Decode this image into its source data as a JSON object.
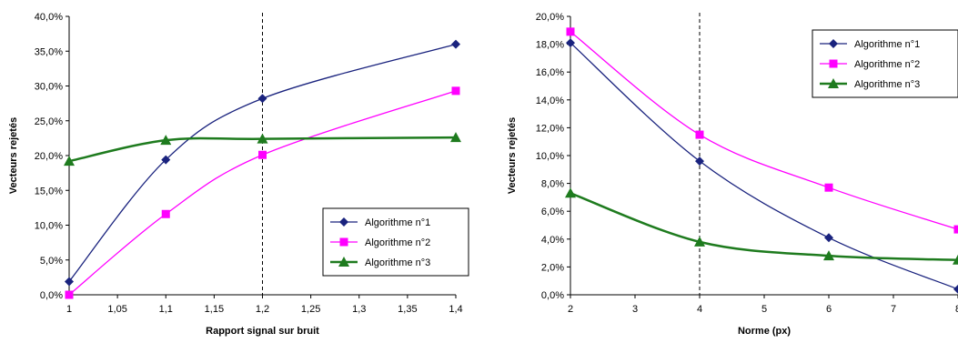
{
  "chart_data": [
    {
      "type": "line",
      "xlabel": "Rapport signal sur bruit",
      "ylabel": "Vecteurs rejetés",
      "x": [
        1,
        1.1,
        1.2,
        1.4
      ],
      "xlim": [
        1,
        1.4
      ],
      "xticks": [
        "1",
        "1,05",
        "1,1",
        "1,15",
        "1,2",
        "1,25",
        "1,3",
        "1,35",
        "1,4"
      ],
      "ylim": [
        0,
        40
      ],
      "yticks": [
        "0,0%",
        "5,0%",
        "10,0%",
        "15,0%",
        "20,0%",
        "25,0%",
        "30,0%",
        "35,0%",
        "40,0%"
      ],
      "reference_line_x": 1.2,
      "legend_position": "lower-right",
      "series": [
        {
          "name": "Algorithme n°1",
          "values": [
            1.9,
            19.4,
            28.2,
            36.0
          ],
          "color": "#1a237e",
          "marker": "diamond"
        },
        {
          "name": "Algorithme n°2",
          "values": [
            0.0,
            11.6,
            20.1,
            29.3
          ],
          "color": "#ff00ff",
          "marker": "square"
        },
        {
          "name": "Algorithme n°3",
          "values": [
            19.2,
            22.2,
            22.4,
            22.6
          ],
          "color": "#1e7b1e",
          "marker": "triangle"
        }
      ]
    },
    {
      "type": "line",
      "xlabel": "Norme (px)",
      "ylabel": "Vecteurs rejetés",
      "x": [
        2,
        4,
        6,
        8
      ],
      "xlim": [
        2,
        8
      ],
      "xticks": [
        "2",
        "3",
        "4",
        "5",
        "6",
        "7",
        "8"
      ],
      "ylim": [
        0,
        20
      ],
      "yticks": [
        "0,0%",
        "2,0%",
        "4,0%",
        "6,0%",
        "8,0%",
        "10,0%",
        "12,0%",
        "14,0%",
        "16,0%",
        "18,0%",
        "20,0%"
      ],
      "reference_line_x": 4,
      "legend_position": "top-right",
      "series": [
        {
          "name": "Algorithme n°1",
          "values": [
            18.1,
            9.6,
            4.1,
            0.4
          ],
          "color": "#1a237e",
          "marker": "diamond"
        },
        {
          "name": "Algorithme n°2",
          "values": [
            18.9,
            11.5,
            7.7,
            4.7
          ],
          "color": "#ff00ff",
          "marker": "square"
        },
        {
          "name": "Algorithme n°3",
          "values": [
            7.3,
            3.8,
            2.8,
            2.5
          ],
          "color": "#1e7b1e",
          "marker": "triangle"
        }
      ]
    }
  ]
}
